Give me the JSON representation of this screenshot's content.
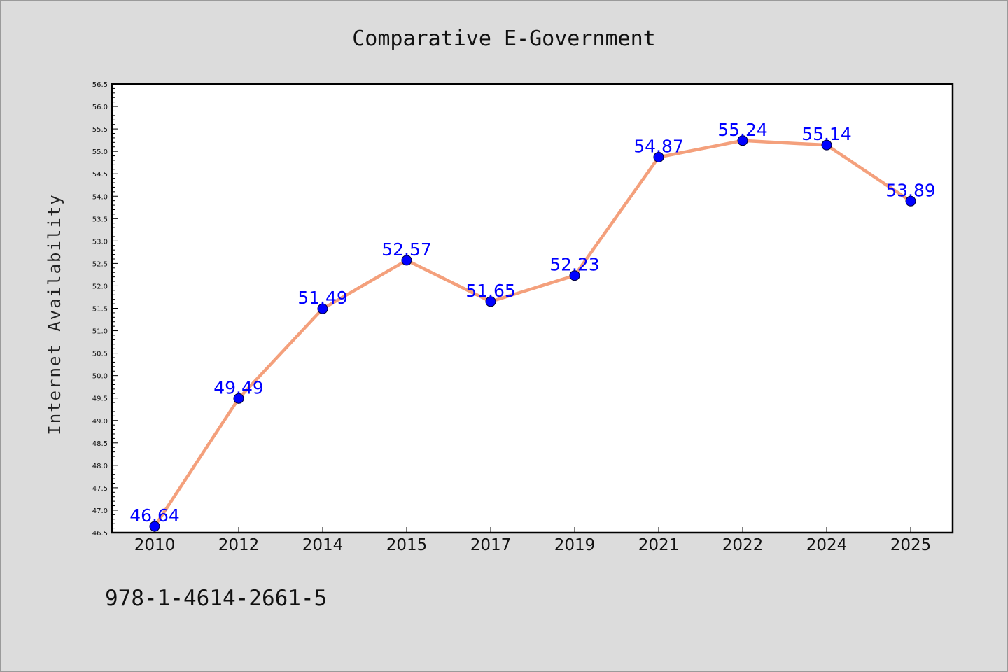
{
  "chart_data": {
    "type": "line",
    "title": "Comparative E-Government",
    "xlabel": "",
    "ylabel": "Internet Availability",
    "categories": [
      "2010",
      "2012",
      "2014",
      "2015",
      "2017",
      "2019",
      "2021",
      "2022",
      "2024",
      "2025"
    ],
    "series": [
      {
        "values": [
          46.64,
          49.49,
          51.49,
          52.57,
          51.65,
          52.23,
          54.87,
          55.24,
          55.14,
          53.89
        ],
        "data_labels": [
          "46.64",
          "49.49",
          "51.49",
          "52.57",
          "51.65",
          "52.23",
          "54.87",
          "55.24",
          "55.14",
          "53.89"
        ],
        "line_color": "#f4a07c",
        "marker_color": "#0000ff"
      }
    ],
    "ylim": [
      46.5,
      56.5
    ],
    "yticks": [
      "46.5",
      "47.0",
      "47.5",
      "48.0",
      "48.5",
      "49.0",
      "49.5",
      "50.0",
      "50.5",
      "51.0",
      "51.5",
      "52.0",
      "52.5",
      "53.0",
      "53.5",
      "54.0",
      "54.5",
      "55.0",
      "55.5",
      "56.0",
      "56.5"
    ],
    "grid": false,
    "legend": "none"
  },
  "footer": {
    "text": "978-1-4614-2661-5"
  },
  "colors": {
    "background": "#dcdcdc",
    "plot_background": "#ffffff",
    "line": "#f4a07c",
    "marker": "#0000ff",
    "data_label": "#0000ff"
  }
}
